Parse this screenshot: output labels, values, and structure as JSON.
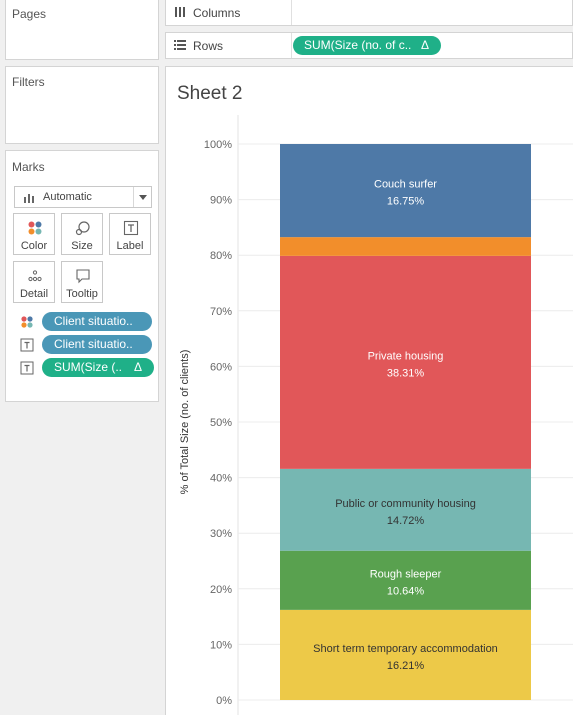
{
  "sidebar": {
    "pages_title": "Pages",
    "filters_title": "Filters",
    "marks": {
      "title": "Marks",
      "mark_type": "Automatic",
      "buttons": [
        {
          "label": "Color",
          "icon": "color-dots-icon"
        },
        {
          "label": "Size",
          "icon": "size-icon"
        },
        {
          "label": "Label",
          "icon": "label-text-icon"
        },
        {
          "label": "Detail",
          "icon": "detail-dots-icon"
        },
        {
          "label": "Tooltip",
          "icon": "tooltip-icon"
        }
      ],
      "pills": [
        {
          "icon": "color-dots-icon",
          "label": "Client situatio..",
          "type": "dimension"
        },
        {
          "icon": "label-text-icon",
          "label": "Client situatio..",
          "type": "dimension"
        },
        {
          "icon": "label-text-icon",
          "label": "SUM(Size (..",
          "type": "measure",
          "delta": "Δ"
        }
      ]
    }
  },
  "shelves": {
    "columns_label": "Columns",
    "rows_label": "Rows",
    "rows_pill": "SUM(Size (no. of c..",
    "rows_pill_delta": "Δ"
  },
  "sheet": {
    "title": "Sheet 2"
  },
  "colors": {
    "measure_pill": "#1fb088",
    "dimension_pill": "#4a97b7"
  },
  "chart_data": {
    "type": "bar",
    "stacked": true,
    "ylabel": "% of Total Size (no. of clients)",
    "ylim": [
      0,
      100
    ],
    "yticks": [
      "0%",
      "10%",
      "20%",
      "30%",
      "40%",
      "50%",
      "60%",
      "70%",
      "80%",
      "90%",
      "100%"
    ],
    "grid": true,
    "segments": [
      {
        "name": "Short term temporary accommodation",
        "value": 16.21,
        "label": "16.21%",
        "color": "#edc948",
        "text_color": "#333333"
      },
      {
        "name": "Rough sleeper",
        "value": 10.64,
        "label": "10.64%",
        "color": "#59a14f",
        "text_color": "#ffffff"
      },
      {
        "name": "Public or community housing",
        "value": 14.72,
        "label": "14.72%",
        "color": "#76b7b2",
        "text_color": "#333333"
      },
      {
        "name": "Private housing",
        "value": 38.31,
        "label": "38.31%",
        "color": "#e15759",
        "text_color": "#ffffff"
      },
      {
        "name": "",
        "value": 3.37,
        "label": "",
        "color": "#f28e2b",
        "text_color": "#ffffff"
      },
      {
        "name": "Couch surfer",
        "value": 16.75,
        "label": "16.75%",
        "color": "#4e79a7",
        "text_color": "#ffffff"
      }
    ]
  }
}
